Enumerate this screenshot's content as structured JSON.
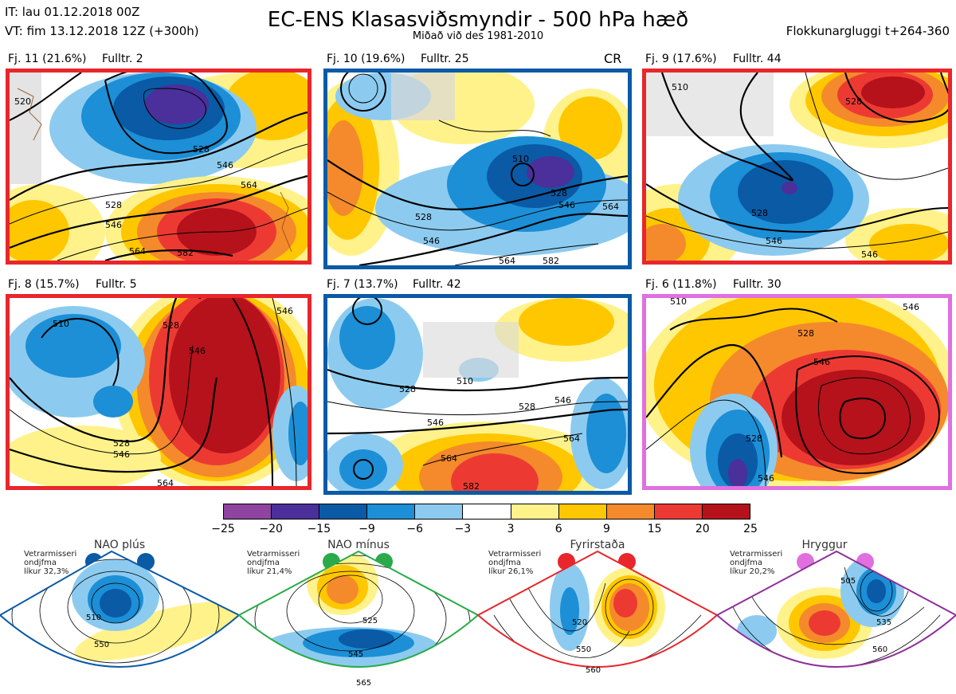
{
  "header": {
    "it": "IT: lau 01.12.2018 00Z",
    "vt": "VT: fim 13.12.2018 12Z  (+300h)",
    "title": "EC-ENS Klasasviðsmyndir - 500 hPa hæð",
    "subtitle": "Miðað við des 1981-2010",
    "window": "Flokkunargluggi t+264-360"
  },
  "panels": [
    {
      "label": "Fj. 11 (21.6%)",
      "members": "Fulltr. 2",
      "border": "#e8262b",
      "tag": "",
      "contours": [
        "520",
        "528",
        "546",
        "564",
        "528",
        "546",
        "564",
        "582"
      ]
    },
    {
      "label": "Fj. 10 (19.6%)",
      "members": "Fulltr. 25",
      "border": "#0a5aa6",
      "tag": "CR",
      "contours": [
        "510",
        "528",
        "546",
        "564",
        "528",
        "546",
        "582",
        "564"
      ]
    },
    {
      "label": "Fj. 9 (17.6%)",
      "members": "Fulltr. 44",
      "border": "#e8262b",
      "tag": "",
      "contours": [
        "510",
        "528",
        "546",
        "528",
        "546"
      ]
    },
    {
      "label": "Fj. 8 (15.7%)",
      "members": "Fulltr. 5",
      "border": "#e8262b",
      "tag": "",
      "contours": [
        "510",
        "528",
        "546",
        "528",
        "546",
        "546",
        "564"
      ]
    },
    {
      "label": "Fj. 7 (13.7%)",
      "members": "Fulltr. 42",
      "border": "#0a5aa6",
      "tag": "",
      "contours": [
        "528",
        "510",
        "528",
        "546",
        "546",
        "564",
        "564",
        "582"
      ]
    },
    {
      "label": "Fj. 6 (11.8%)",
      "members": "Fulltr. 30",
      "border": "#e070e0",
      "tag": "",
      "contours": [
        "510",
        "528",
        "546",
        "528",
        "546",
        "546"
      ]
    }
  ],
  "colorbar": {
    "ticks": [
      "−25",
      "−20",
      "−15",
      "−9",
      "−6",
      "−3",
      "3",
      "6",
      "9",
      "15",
      "20",
      "25"
    ],
    "colors": [
      "#8e44a0",
      "#4b2f9a",
      "#0a5aa6",
      "#1c8fd6",
      "#8ccbef",
      "#ffffff",
      "#fff28a",
      "#ffc700",
      "#f48a2b",
      "#ec3a33",
      "#b5121b"
    ]
  },
  "regimes": [
    {
      "name": "NAO plús",
      "season": "Vetrarmisseri",
      "method": "ondjfma",
      "likur": "líkur 32,3%",
      "color": "#0a5aa6",
      "contours": [
        "510",
        "550"
      ]
    },
    {
      "name": "NAO mínus",
      "season": "Vetrarmisseri",
      "method": "ondjfma",
      "likur": "líkur 21,4%",
      "color": "#2aaa4a",
      "contours": [
        "525",
        "545",
        "565"
      ]
    },
    {
      "name": "Fyrirstaða",
      "season": "Vetrarmisseri",
      "method": "ondjfma",
      "likur": "líkur 26,1%",
      "color": "#e8262b",
      "contours": [
        "520",
        "550",
        "560"
      ]
    },
    {
      "name": "Hryggur",
      "season": "Vetrarmisseri",
      "method": "ondjfma",
      "likur": "líkur 20,2%",
      "color": "#e070e0",
      "contours": [
        "505",
        "535",
        "560"
      ]
    }
  ]
}
